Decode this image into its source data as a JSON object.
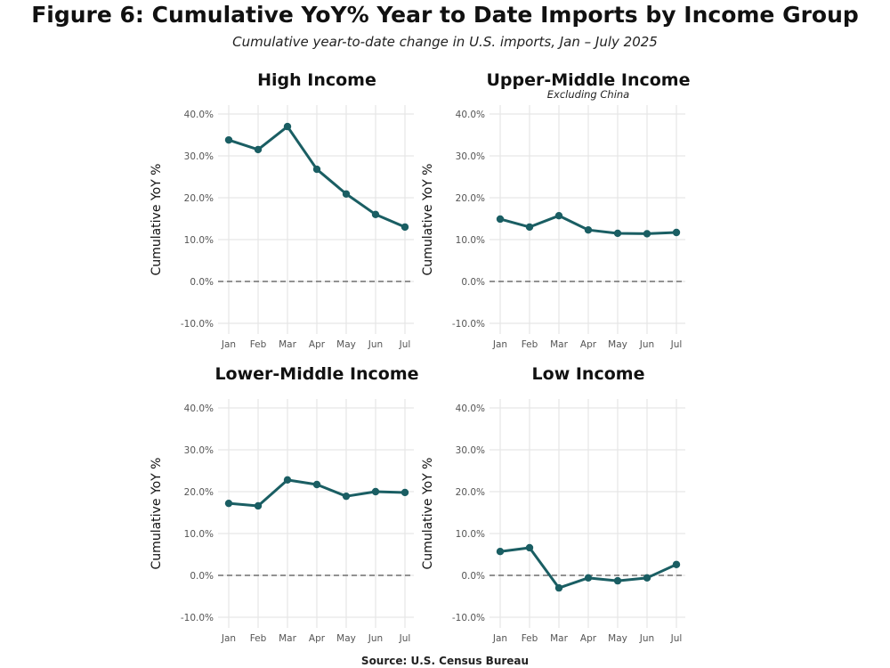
{
  "title": "Figure 6: Cumulative YoY% Year to Date Imports by Income Group",
  "subtitle": "Cumulative year-to-date change in U.S. imports, Jan – July 2025",
  "source": "Source: U.S. Census Bureau",
  "line_color": "#1a5e63",
  "chart_data": [
    {
      "type": "line",
      "title": "High Income",
      "subtitle": "",
      "ylabel": "Cumulative YoY %",
      "categories": [
        "Jan",
        "Feb",
        "Mar",
        "Apr",
        "May",
        "Jun",
        "Jul"
      ],
      "values": [
        33.8,
        31.5,
        37.0,
        26.8,
        20.9,
        16.0,
        13.0
      ],
      "ylim": [
        -10,
        40
      ],
      "yticks": [
        "-10.0%",
        "0.0%",
        "10.0%",
        "20.0%",
        "30.0%",
        "40.0%"
      ],
      "reference_line": 0,
      "grid": true
    },
    {
      "type": "line",
      "title": "Upper-Middle Income",
      "subtitle": "Excluding China",
      "ylabel": "Cumulative YoY %",
      "categories": [
        "Jan",
        "Feb",
        "Mar",
        "Apr",
        "May",
        "Jun",
        "Jul"
      ],
      "values": [
        14.9,
        13.0,
        15.7,
        12.3,
        11.5,
        11.4,
        11.7
      ],
      "ylim": [
        -10,
        40
      ],
      "yticks": [
        "-10.0%",
        "0.0%",
        "10.0%",
        "20.0%",
        "30.0%",
        "40.0%"
      ],
      "reference_line": 0,
      "grid": true
    },
    {
      "type": "line",
      "title": "Lower-Middle Income",
      "subtitle": "",
      "ylabel": "Cumulative YoY %",
      "categories": [
        "Jan",
        "Feb",
        "Mar",
        "Apr",
        "May",
        "Jun",
        "Jul"
      ],
      "values": [
        17.2,
        16.6,
        22.8,
        21.7,
        18.9,
        20.0,
        19.8
      ],
      "ylim": [
        -10,
        40
      ],
      "yticks": [
        "-10.0%",
        "0.0%",
        "10.0%",
        "20.0%",
        "30.0%",
        "40.0%"
      ],
      "reference_line": 0,
      "grid": true
    },
    {
      "type": "line",
      "title": "Low Income",
      "subtitle": "",
      "ylabel": "Cumulative YoY %",
      "categories": [
        "Jan",
        "Feb",
        "Mar",
        "Apr",
        "May",
        "Jun",
        "Jul"
      ],
      "values": [
        5.7,
        6.6,
        -3.0,
        -0.6,
        -1.3,
        -0.6,
        2.6
      ],
      "ylim": [
        -10,
        40
      ],
      "yticks": [
        "-10.0%",
        "0.0%",
        "10.0%",
        "20.0%",
        "30.0%",
        "40.0%"
      ],
      "reference_line": 0,
      "grid": true
    }
  ]
}
